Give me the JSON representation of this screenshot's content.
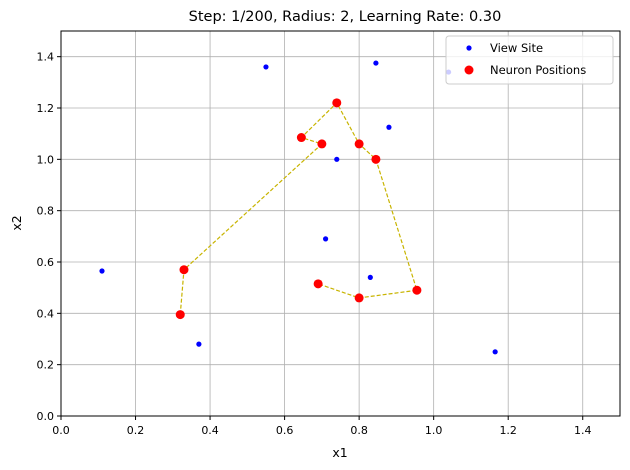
{
  "chart_data": {
    "type": "scatter",
    "title": "Step: 1/200, Radius: 2, Learning Rate: 0.30",
    "xlabel": "x1",
    "ylabel": "x2",
    "xlim": [
      0.0,
      1.5
    ],
    "ylim": [
      0.0,
      1.5
    ],
    "xticks": [
      "0.0",
      "0.2",
      "0.4",
      "0.6",
      "0.8",
      "1.0",
      "1.2",
      "1.4"
    ],
    "yticks": [
      "0.0",
      "0.2",
      "0.4",
      "0.6",
      "0.8",
      "1.0",
      "1.2",
      "1.4"
    ],
    "grid": true,
    "legend_position": "top-right",
    "series": [
      {
        "name": "View Site",
        "color": "#0000ff",
        "marker": "small-dot",
        "points": [
          [
            0.11,
            0.565
          ],
          [
            0.37,
            0.28
          ],
          [
            0.55,
            1.36
          ],
          [
            0.71,
            0.69
          ],
          [
            0.74,
            1.0
          ],
          [
            0.83,
            0.54
          ],
          [
            0.845,
            1.375
          ],
          [
            0.88,
            1.125
          ],
          [
            1.04,
            1.34
          ],
          [
            1.165,
            0.25
          ]
        ]
      },
      {
        "name": "Neuron Positions",
        "color": "#ff0000",
        "marker": "dot",
        "points": [
          [
            0.32,
            0.395
          ],
          [
            0.33,
            0.57
          ],
          [
            0.645,
            1.085
          ],
          [
            0.7,
            1.06
          ],
          [
            0.74,
            1.22
          ],
          [
            0.8,
            1.06
          ],
          [
            0.845,
            1.0
          ],
          [
            0.955,
            0.49
          ],
          [
            0.8,
            0.46
          ],
          [
            0.69,
            0.515
          ]
        ]
      }
    ],
    "path": {
      "style": "dashed",
      "color": "#c8b400",
      "points": [
        [
          0.32,
          0.395
        ],
        [
          0.33,
          0.57
        ],
        [
          0.7,
          1.06
        ],
        [
          0.645,
          1.085
        ],
        [
          0.74,
          1.22
        ],
        [
          0.8,
          1.06
        ],
        [
          0.845,
          1.0
        ],
        [
          0.955,
          0.49
        ],
        [
          0.8,
          0.46
        ],
        [
          0.69,
          0.515
        ]
      ]
    }
  }
}
